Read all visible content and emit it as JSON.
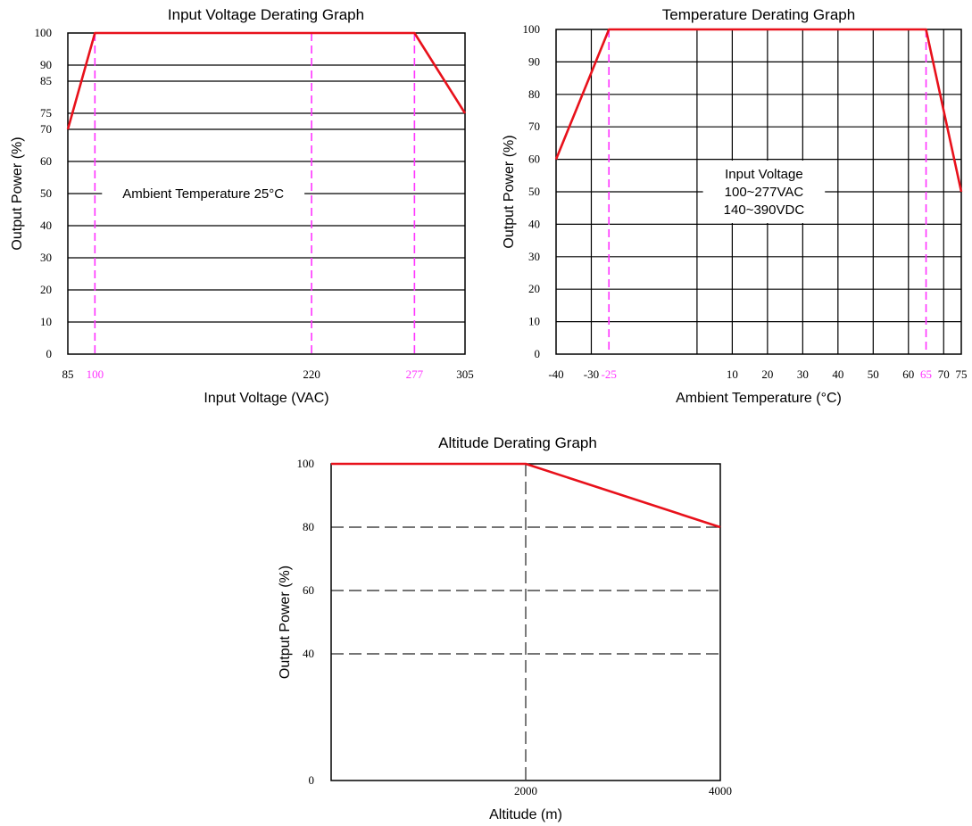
{
  "chart_data": [
    {
      "id": "voltage",
      "type": "line",
      "title": "Input Voltage Derating Graph",
      "xlabel": "Input Voltage (VAC)",
      "ylabel": "Output Power (%)",
      "xlim": [
        85,
        305
      ],
      "ylim": [
        0,
        100
      ],
      "x_ticks": [
        "85",
        "100",
        "220",
        "277",
        "305"
      ],
      "x_tick_values": [
        85,
        100,
        220,
        277,
        305
      ],
      "x_highlight": [
        "100",
        "277"
      ],
      "y_ticks": [
        0,
        10,
        20,
        30,
        40,
        50,
        60,
        70,
        75,
        85,
        90,
        100
      ],
      "grid_y": [
        10,
        20,
        30,
        40,
        50,
        60,
        70,
        75,
        85,
        90
      ],
      "vref_x": [
        100,
        220,
        277
      ],
      "series": [
        {
          "x": [
            85,
            100,
            277,
            305
          ],
          "y": [
            70,
            100,
            100,
            75
          ],
          "color": "#e8111b"
        }
      ],
      "annotations": [
        {
          "text": "Ambient Temperature 25°C",
          "x": 160,
          "y": 50
        }
      ]
    },
    {
      "id": "temperature",
      "type": "line",
      "title": "Temperature Derating Graph",
      "xlabel": "Ambient Temperature (°C)",
      "ylabel": "Output Power (%)",
      "xlim": [
        -40,
        75
      ],
      "ylim": [
        0,
        100
      ],
      "x_ticks": [
        "-40",
        "-30",
        "-25",
        "10",
        "20",
        "30",
        "40",
        "50",
        "60",
        "65",
        "70",
        "75"
      ],
      "x_tick_values": [
        -40,
        -30,
        -25,
        10,
        20,
        30,
        40,
        50,
        60,
        65,
        70,
        75
      ],
      "x_highlight": [
        "-25",
        "65"
      ],
      "y_ticks": [
        0,
        10,
        20,
        30,
        40,
        50,
        60,
        70,
        80,
        90,
        100
      ],
      "grid_y": [
        10,
        20,
        30,
        40,
        50,
        60,
        70,
        80,
        90
      ],
      "grid_x": [
        -30,
        0,
        10,
        20,
        30,
        40,
        50,
        60,
        70
      ],
      "vref_x": [
        -25,
        65
      ],
      "series": [
        {
          "x": [
            -40,
            -25,
            65,
            75
          ],
          "y": [
            60,
            100,
            100,
            50
          ],
          "color": "#e8111b"
        }
      ],
      "annotations": [
        {
          "lines": [
            "Input Voltage",
            "100~277VAC",
            "140~390VDC"
          ],
          "x": 19,
          "y": 50
        }
      ]
    },
    {
      "id": "altitude",
      "type": "line",
      "title": "Altitude Derating Graph",
      "xlabel": "Altitude (m)",
      "ylabel": "Output Power (%)",
      "xlim": [
        0,
        4000
      ],
      "ylim": [
        0,
        100
      ],
      "x_ticks": [
        "2000",
        "4000"
      ],
      "x_tick_values": [
        2000,
        4000
      ],
      "y_ticks": [
        0,
        40,
        60,
        80,
        100
      ],
      "grid_y_dashed": [
        40,
        60,
        80
      ],
      "vref_x_dashed": [
        2000
      ],
      "series": [
        {
          "x": [
            0,
            2000,
            4000
          ],
          "y": [
            100,
            100,
            80
          ],
          "color": "#e8111b"
        }
      ]
    }
  ]
}
